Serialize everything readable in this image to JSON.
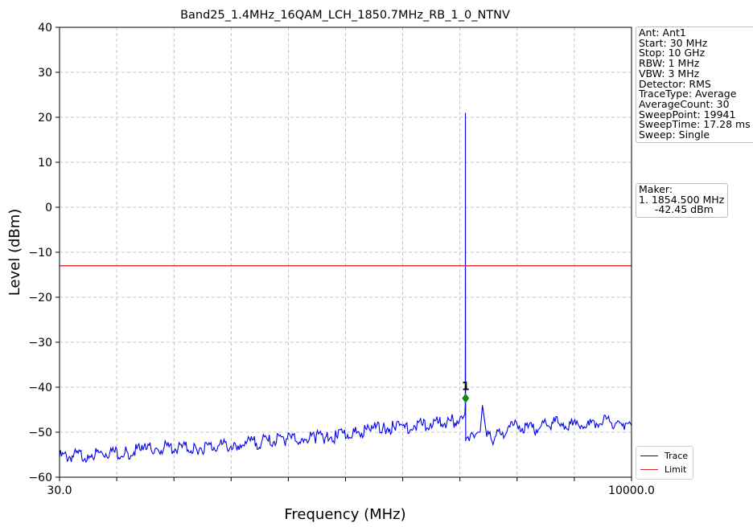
{
  "chart_data": {
    "type": "line",
    "title": "Band25_1.4MHz_16QAM_LCH_1850.7MHz_RB_1_0_NTNV",
    "xlabel": "Frequency (MHz)",
    "ylabel": "Level (dBm)",
    "x_scale": "log",
    "xlim": [
      30.0,
      10000.0
    ],
    "ylim": [
      -60,
      40
    ],
    "x_tick_labels": [
      "30.0",
      "10000.0"
    ],
    "y_ticks": [
      40,
      30,
      20,
      10,
      0,
      -10,
      -20,
      -30,
      -40,
      -50,
      -60
    ],
    "grid": true,
    "legend_position": "bottom-right",
    "series": [
      {
        "name": "Trace",
        "color": "#0000ee",
        "x": [
          30,
          40,
          50,
          60,
          70,
          80,
          100,
          120,
          150,
          180,
          200,
          250,
          300,
          350,
          400,
          450,
          500,
          600,
          700,
          800,
          900,
          1000,
          1100,
          1200,
          1300,
          1400,
          1500,
          1600,
          1700,
          1800,
          1840,
          1848,
          1849,
          1850,
          1850.7,
          1851.5,
          1853,
          1854.5,
          1856,
          1860,
          1900,
          1950,
          2000,
          2050,
          2100,
          2150,
          2200,
          2300,
          2400,
          2500,
          2700,
          3000,
          3200,
          3500,
          3800,
          4000,
          4200,
          4500,
          5000,
          5500,
          6000,
          6500,
          7000,
          7500,
          8000,
          8500,
          9000,
          9500,
          10000
        ],
        "y": [
          -55.5,
          -55.0,
          -54.5,
          -54.5,
          -54.0,
          -53.5,
          -53.5,
          -53.5,
          -53.0,
          -53.0,
          -52.5,
          -52.0,
          -51.5,
          -51.5,
          -51.0,
          -51.0,
          -51.0,
          -50.0,
          -49.5,
          -49.0,
          -49.0,
          -49.0,
          -48.5,
          -48.5,
          -48.0,
          -48.0,
          -48.0,
          -47.5,
          -47.5,
          -47.0,
          -46.0,
          -44.0,
          -30.0,
          -5.0,
          21.0,
          -10.0,
          -35.0,
          -42.45,
          -52.0,
          -51.5,
          -51.0,
          -50.5,
          -50.5,
          -50.5,
          -50.0,
          -50.0,
          -44.0,
          -51.0,
          -51.5,
          -51.0,
          -50.0,
          -48.5,
          -48.5,
          -49.0,
          -49.5,
          -48.5,
          -48.0,
          -48.0,
          -48.0,
          -48.5,
          -48.5,
          -48.5,
          -48.0,
          -47.5,
          -47.5,
          -48.0,
          -48.0,
          -48.0,
          -48.5
        ]
      },
      {
        "name": "Limit",
        "color": "#dd2222",
        "x": [
          30.0,
          10000.0
        ],
        "y": [
          -13,
          -13
        ]
      }
    ],
    "marker": {
      "label": "1",
      "x": 1854.5,
      "y": -42.45,
      "color": "#138a13"
    }
  },
  "info": {
    "lines": [
      "Ant: Ant1",
      "Start: 30 MHz",
      "Stop: 10 GHz",
      "RBW: 1 MHz",
      "VBW: 3 MHz",
      "Detector: RMS",
      "TraceType: Average",
      "AverageCount: 30",
      "SweepPoint: 19941",
      "SweepTime: 17.28 ms",
      "Sweep: Single"
    ]
  },
  "maker": {
    "lines": [
      "Maker:",
      "1. 1854.500 MHz",
      "     -42.45 dBm"
    ]
  },
  "legend": {
    "items": [
      {
        "label": "Trace",
        "color": "#0000ee"
      },
      {
        "label": "Limit",
        "color": "#dd2222"
      }
    ]
  }
}
